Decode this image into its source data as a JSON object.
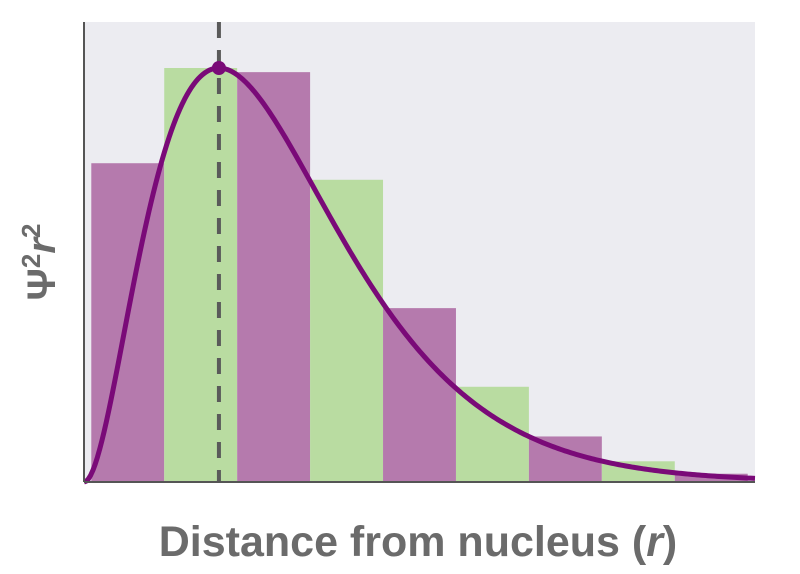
{
  "chart_data": {
    "type": "bar",
    "title": "",
    "xlabel": "Distance from nucleus (r)",
    "ylabel": "Ψ²r²",
    "xlabel_parts": {
      "text": "Distance from nucleus (",
      "var": "r",
      "close": ")"
    },
    "ylabel_parts": {
      "psi": "Ψ",
      "sup1": "2",
      "var": "r",
      "sup2": "2"
    },
    "grid": false,
    "legend": "none",
    "xlim": [
      0,
      9.2
    ],
    "ylim": [
      0,
      1.0
    ],
    "bars": [
      {
        "x0": 0.1,
        "x1": 1.1,
        "value": 0.77,
        "color": "#b57aad"
      },
      {
        "x0": 1.1,
        "x1": 2.1,
        "value": 1.0,
        "color": "#b9dca1"
      },
      {
        "x0": 2.1,
        "x1": 3.1,
        "value": 0.99,
        "color": "#b57aad"
      },
      {
        "x0": 3.1,
        "x1": 4.1,
        "value": 0.73,
        "color": "#b9dca1"
      },
      {
        "x0": 4.1,
        "x1": 5.1,
        "value": 0.42,
        "color": "#b57aad"
      },
      {
        "x0": 5.1,
        "x1": 6.1,
        "value": 0.23,
        "color": "#b9dca1"
      },
      {
        "x0": 6.1,
        "x1": 7.1,
        "value": 0.11,
        "color": "#b57aad"
      },
      {
        "x0": 7.1,
        "x1": 8.1,
        "value": 0.05,
        "color": "#b9dca1"
      },
      {
        "x0": 8.1,
        "x1": 9.1,
        "value": 0.02,
        "color": "#b57aad"
      }
    ],
    "curve": {
      "description": "Radial probability r^2 e^(-2r/a)",
      "peak_x": 1.85,
      "peak_y": 1.0,
      "color": "#7a0a78"
    },
    "peak_marker_x": 1.85,
    "colors": {
      "plot_background": "#ececf1",
      "curve": "#7a0a78",
      "dashed_line": "#5a5a5a",
      "axis": "#555555",
      "label": "#6b6b6b"
    }
  }
}
